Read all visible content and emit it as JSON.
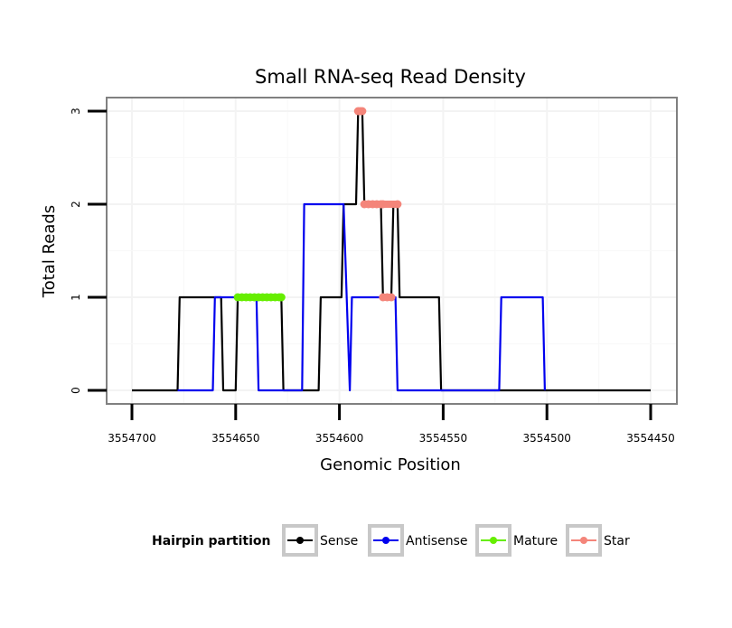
{
  "chart_data": {
    "type": "line",
    "title": "Small RNA-seq Read Density",
    "xlabel": "Genomic Position",
    "ylabel": "Total Reads",
    "xlim": [
      3554700,
      3554450
    ],
    "x_reversed": true,
    "ylim": [
      0,
      3
    ],
    "x_ticks": [
      3554700,
      3554650,
      3554600,
      3554550,
      3554500,
      3554450
    ],
    "y_ticks": [
      0,
      1,
      2,
      3
    ],
    "grid": true,
    "legend": {
      "title": "Hairpin partition",
      "position": "bottom",
      "entries": [
        {
          "name": "Sense",
          "color": "#000000"
        },
        {
          "name": "Antisense",
          "color": "#0000ee"
        },
        {
          "name": "Mature",
          "color": "#66ee00"
        },
        {
          "name": "Star",
          "color": "#f4857a"
        }
      ]
    },
    "series": [
      {
        "name": "Sense",
        "color": "#000000",
        "kind": "step-line",
        "x": [
          3554700,
          3554678,
          3554677,
          3554657,
          3554656,
          3554650,
          3554649,
          3554628,
          3554627,
          3554610,
          3554609,
          3554599,
          3554598,
          3554592,
          3554591,
          3554589,
          3554588,
          3554580,
          3554579,
          3554575,
          3554574,
          3554572,
          3554571,
          3554552,
          3554551,
          3554450
        ],
        "y": [
          0,
          0,
          1,
          1,
          0,
          0,
          1,
          1,
          0,
          0,
          1,
          1,
          2,
          2,
          3,
          3,
          2,
          2,
          1,
          1,
          2,
          2,
          1,
          1,
          0,
          0
        ]
      },
      {
        "name": "Antisense",
        "color": "#0000ee",
        "kind": "step-line",
        "x": [
          3554678,
          3554661,
          3554660,
          3554640,
          3554639,
          3554618,
          3554617,
          3554598,
          3554595,
          3554594,
          3554573,
          3554572,
          3554550,
          3554523,
          3554522,
          3554502,
          3554501
        ],
        "y": [
          0,
          0,
          1,
          1,
          0,
          0,
          2,
          2,
          0,
          1,
          1,
          0,
          0,
          0,
          1,
          1,
          0
        ]
      },
      {
        "name": "Mature",
        "color": "#66ee00",
        "kind": "points",
        "points": [
          [
            3554649,
            1
          ],
          [
            3554647,
            1
          ],
          [
            3554645,
            1
          ],
          [
            3554643,
            1
          ],
          [
            3554641,
            1
          ],
          [
            3554639,
            1
          ],
          [
            3554637,
            1
          ],
          [
            3554635,
            1
          ],
          [
            3554633,
            1
          ],
          [
            3554631,
            1
          ],
          [
            3554629,
            1
          ],
          [
            3554628,
            1
          ]
        ]
      },
      {
        "name": "Star",
        "color": "#f4857a",
        "kind": "points",
        "points": [
          [
            3554591,
            3
          ],
          [
            3554590,
            3
          ],
          [
            3554589,
            3
          ],
          [
            3554588,
            2
          ],
          [
            3554586,
            2
          ],
          [
            3554584,
            2
          ],
          [
            3554582,
            2
          ],
          [
            3554580,
            2
          ],
          [
            3554579,
            2
          ],
          [
            3554579,
            1
          ],
          [
            3554577,
            1
          ],
          [
            3554575,
            1
          ],
          [
            3554572,
            2
          ]
        ]
      }
    ]
  }
}
